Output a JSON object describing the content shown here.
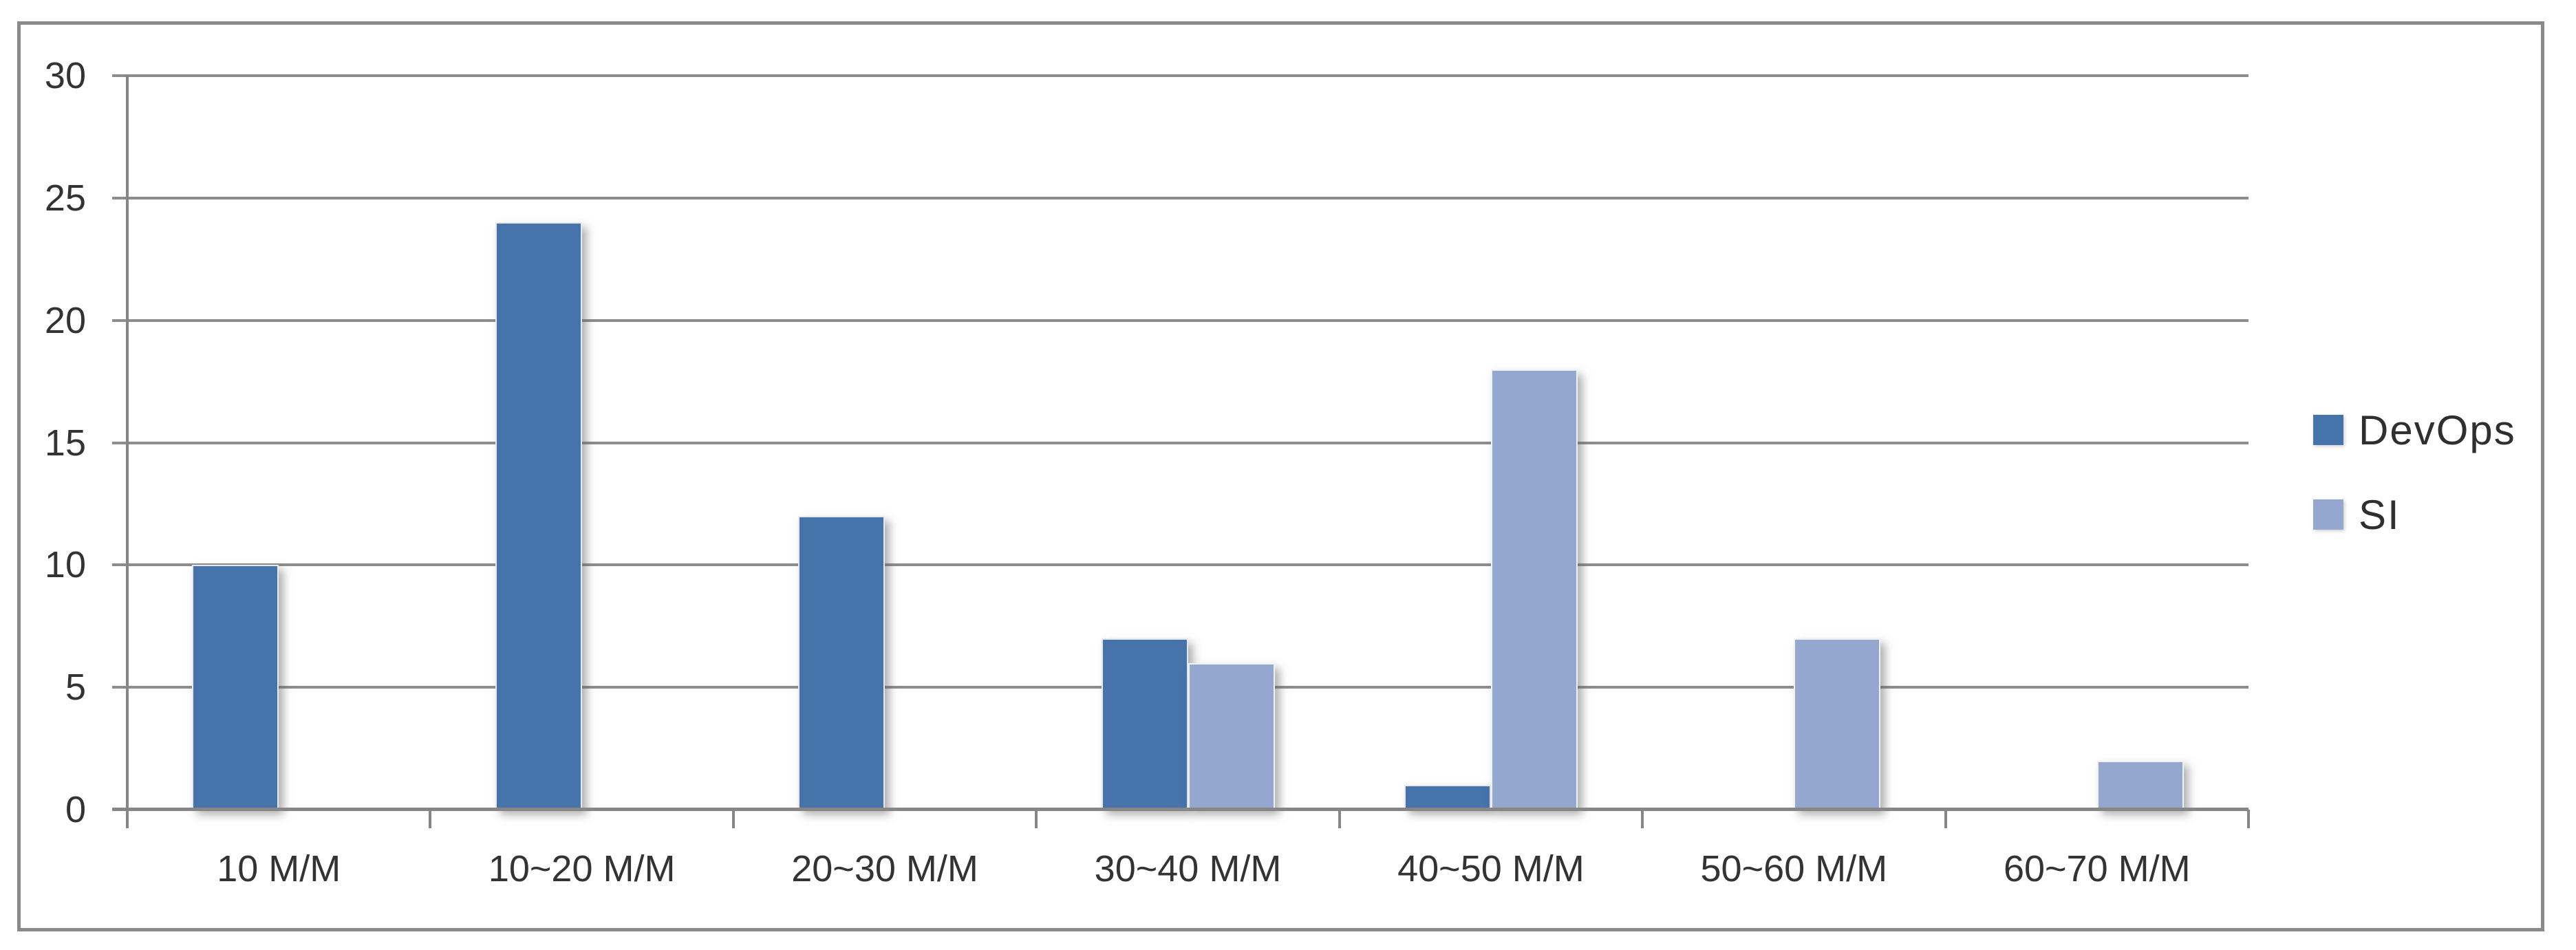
{
  "window": {
    "background": "#ffffff",
    "frame_border_color": "#8a8a8a"
  },
  "colors": {
    "gridline": "#8d8d8d",
    "axis": "#868686",
    "tick_text": "#333333",
    "devops_bar": "#4674AA",
    "si_bar": "#94A7CE"
  },
  "chart_data": {
    "type": "bar",
    "title": "",
    "xlabel": "",
    "ylabel": "",
    "categories": [
      "10 M/M",
      "10~20 M/M",
      "20~30 M/M",
      "30~40 M/M",
      "40~50 M/M",
      "50~60 M/M",
      "60~70 M/M"
    ],
    "series": [
      {
        "name": "DevOps",
        "color": "#4674AA",
        "values": [
          10,
          24,
          12,
          7,
          1,
          0,
          0
        ]
      },
      {
        "name": "SI",
        "color": "#94A7CE",
        "values": [
          0,
          0,
          0,
          6,
          18,
          7,
          2
        ]
      }
    ],
    "ylim": [
      0,
      30
    ],
    "yticks": [
      0,
      5,
      10,
      15,
      20,
      25,
      30
    ],
    "grid": true,
    "legend_position": "right-middle"
  }
}
